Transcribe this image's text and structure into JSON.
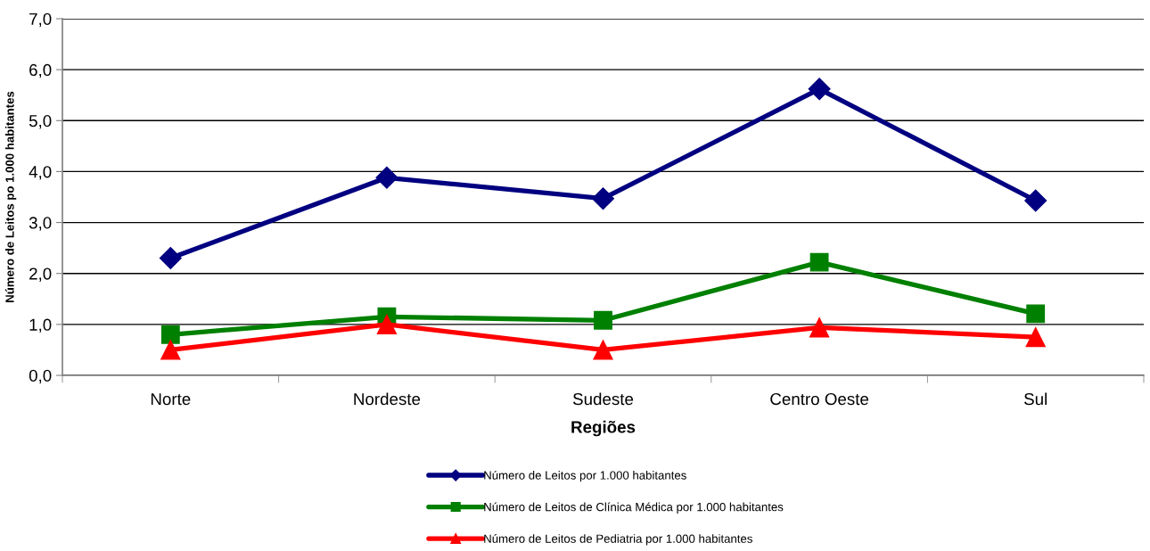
{
  "chart_data": {
    "type": "line",
    "xlabel": "Regiões",
    "ylabel": "Número de Leitos po 1.000 habitantes",
    "categories": [
      "Norte",
      "Nordeste",
      "Sudeste",
      "Centro Oeste",
      "Sul"
    ],
    "series": [
      {
        "name": "Número de Leitos por 1.000 habitantes",
        "color": "#000080",
        "marker": "diamond",
        "values": [
          2.3,
          3.88,
          3.47,
          5.62,
          3.43
        ]
      },
      {
        "name": "Número de Leitos de Clínica Médica por 1.000 habitantes",
        "color": "#008000",
        "marker": "square",
        "values": [
          0.8,
          1.15,
          1.08,
          2.22,
          1.21
        ]
      },
      {
        "name": "Número de Leitos de Pediatria por 1.000 habitantes",
        "color": "#ff0000",
        "marker": "triangle",
        "values": [
          0.5,
          1.0,
          0.5,
          0.94,
          0.75
        ]
      }
    ],
    "ylim": [
      0,
      7
    ],
    "yticks": [
      {
        "value": 0,
        "label": "0,0"
      },
      {
        "value": 1,
        "label": "1,0"
      },
      {
        "value": 2,
        "label": "2,0"
      },
      {
        "value": 3,
        "label": "3,0"
      },
      {
        "value": 4,
        "label": "4,0"
      },
      {
        "value": 5,
        "label": "5,0"
      },
      {
        "value": 6,
        "label": "6,0"
      },
      {
        "value": 7,
        "label": "7,0"
      }
    ],
    "grid": "y",
    "legend": "bottom",
    "line_style": "solid"
  }
}
